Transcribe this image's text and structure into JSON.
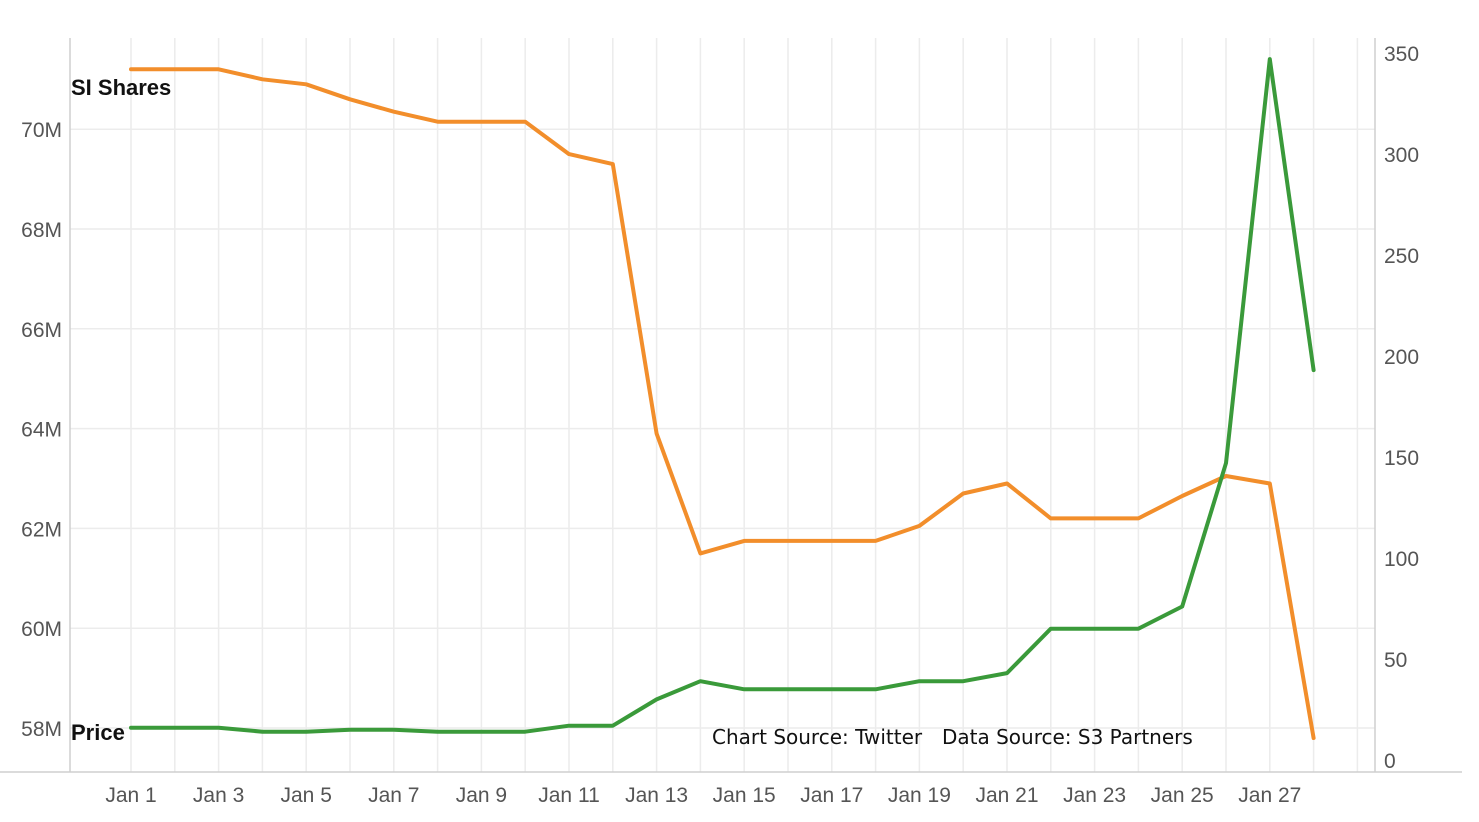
{
  "chart_data": {
    "type": "line",
    "x": [
      "Jan 1",
      "Jan 2",
      "Jan 3",
      "Jan 4",
      "Jan 5",
      "Jan 6",
      "Jan 7",
      "Jan 8",
      "Jan 9",
      "Jan 10",
      "Jan 11",
      "Jan 12",
      "Jan 13",
      "Jan 14",
      "Jan 15",
      "Jan 16",
      "Jan 17",
      "Jan 18",
      "Jan 19",
      "Jan 20",
      "Jan 21",
      "Jan 22",
      "Jan 23",
      "Jan 24",
      "Jan 25",
      "Jan 26",
      "Jan 27",
      "Jan 28"
    ],
    "x_tick_labels": [
      "Jan 1",
      "Jan 3",
      "Jan 5",
      "Jan 7",
      "Jan 9",
      "Jan 11",
      "Jan 13",
      "Jan 15",
      "Jan 17",
      "Jan 19",
      "Jan 21",
      "Jan 23",
      "Jan 25",
      "Jan 27"
    ],
    "series": [
      {
        "name": "SI Shares",
        "axis": "left",
        "color": "#f28e2b",
        "values": [
          71.2,
          71.2,
          71.2,
          71.0,
          70.9,
          70.6,
          70.35,
          70.15,
          70.15,
          70.15,
          69.5,
          69.3,
          63.9,
          61.5,
          61.75,
          61.75,
          61.75,
          61.75,
          62.05,
          62.7,
          62.9,
          62.2,
          62.2,
          62.2,
          62.65,
          63.05,
          62.9,
          57.8
        ]
      },
      {
        "name": "Price",
        "axis": "right",
        "color": "#3a9a3a",
        "values": [
          16,
          16,
          16,
          14,
          14,
          15,
          15,
          14,
          14,
          14,
          17,
          17,
          30,
          39,
          35,
          35,
          35,
          35,
          39,
          39,
          43,
          65,
          65,
          65,
          76,
          147,
          347,
          193
        ]
      }
    ],
    "y_left": {
      "ticks": [
        58,
        60,
        62,
        64,
        66,
        68,
        70
      ],
      "tick_labels": [
        "58M",
        "60M",
        "62M",
        "64M",
        "66M",
        "68M",
        "70M"
      ]
    },
    "y_right": {
      "ticks": [
        0,
        50,
        100,
        150,
        200,
        250,
        300,
        350
      ],
      "tick_labels": [
        "0",
        "50",
        "100",
        "150",
        "200",
        "250",
        "300",
        "350"
      ]
    },
    "labels": {
      "si_shares": "SI Shares",
      "price": "Price"
    },
    "annotations": {
      "chart_source": "Chart Source: Twitter",
      "data_source": "Data Source: S3 Partners"
    },
    "grid": true
  }
}
